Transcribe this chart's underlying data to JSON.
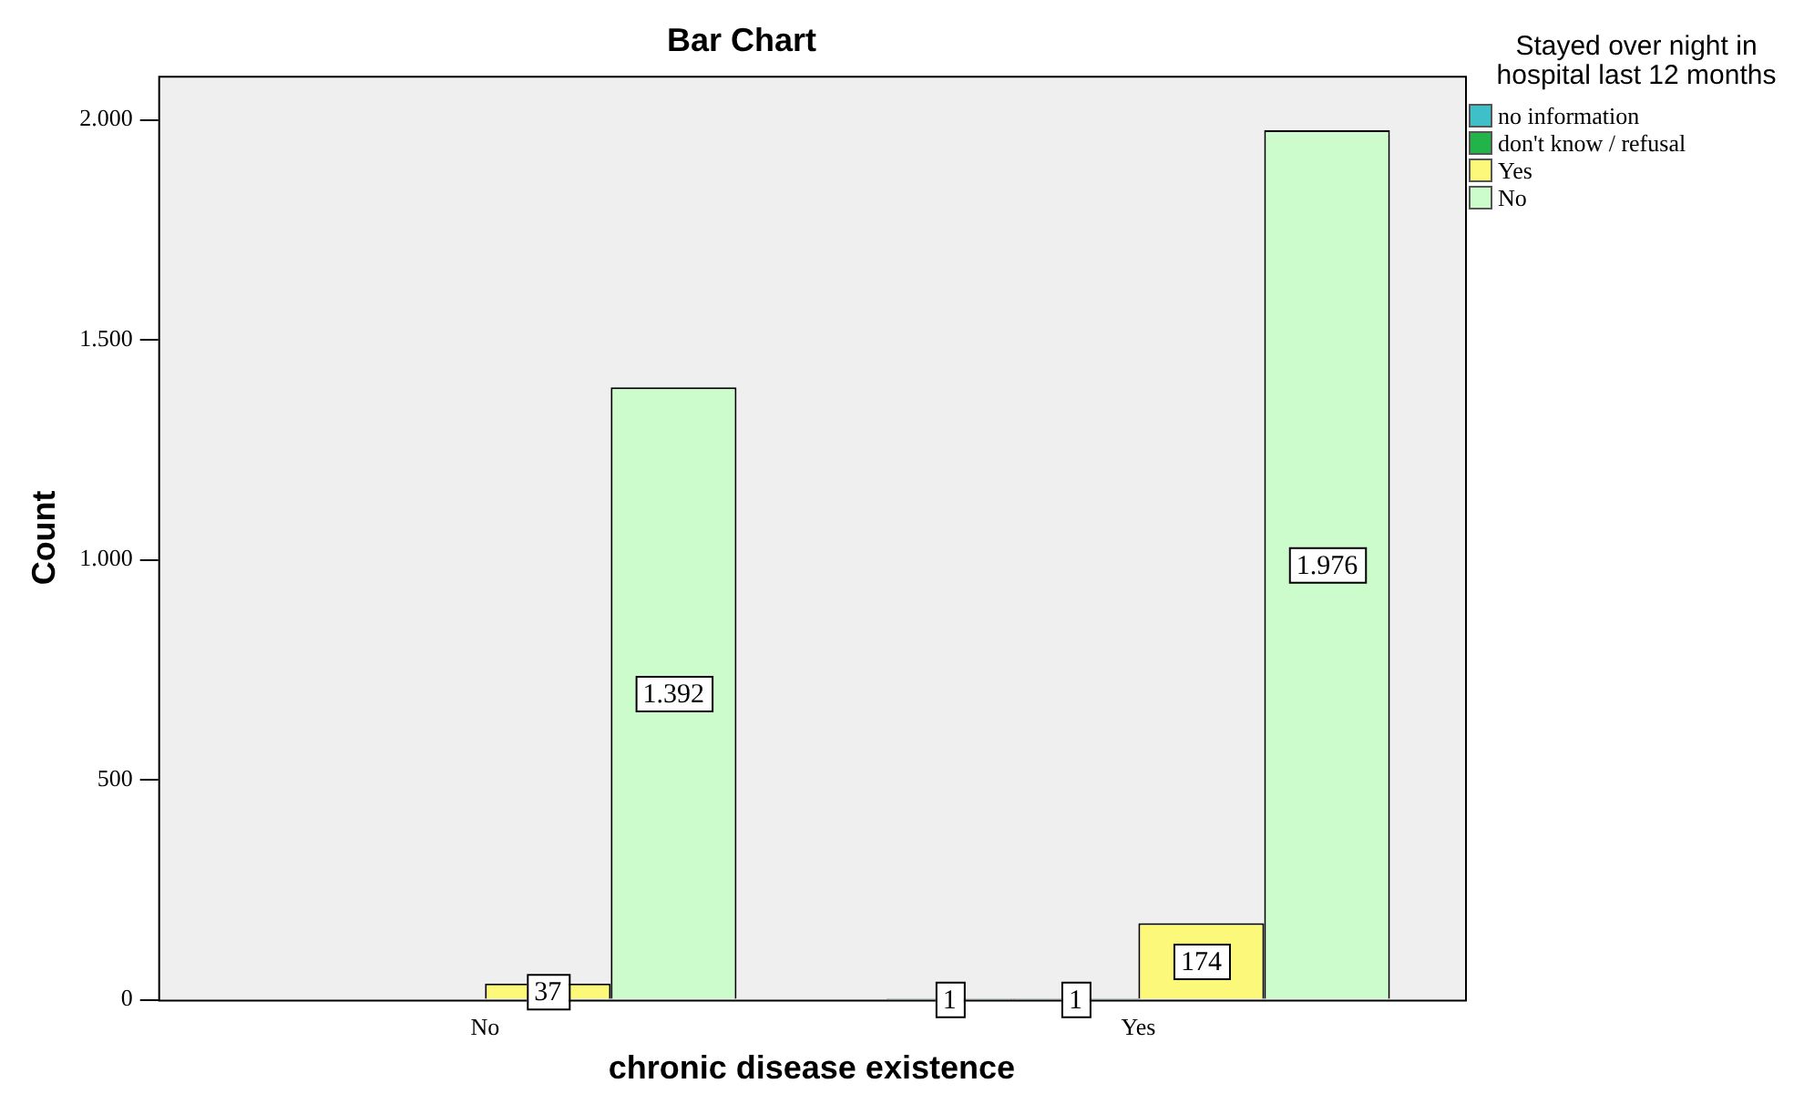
{
  "chart_data": {
    "type": "bar",
    "title": "Bar Chart",
    "xlabel": "chronic disease existence",
    "ylabel": "Count",
    "legend_title": "Stayed over night in hospital last 12 months",
    "legend": "right",
    "categories": [
      "No",
      "Yes"
    ],
    "series": [
      {
        "name": "no information",
        "color": "#3fbfc8",
        "values": [
          null,
          1
        ],
        "value_labels": [
          null,
          "1"
        ]
      },
      {
        "name": "don't know / refusal",
        "color": "#22b34a",
        "values": [
          null,
          1
        ],
        "value_labels": [
          null,
          "1"
        ]
      },
      {
        "name": "Yes",
        "color": "#fbf87a",
        "values": [
          37,
          174
        ],
        "value_labels": [
          "37",
          "174"
        ]
      },
      {
        "name": "No",
        "color": "#ccfccc",
        "values": [
          1392,
          1976
        ],
        "value_labels": [
          "1.392",
          "1.976"
        ]
      }
    ],
    "ylim": [
      0,
      2100
    ],
    "yticks": [
      0,
      500,
      {
        "value": 1000,
        "label": "1.000"
      },
      {
        "value": 1500,
        "label": "1.500"
      },
      {
        "value": 2000,
        "label": "2.000"
      }
    ],
    "grid": false
  }
}
